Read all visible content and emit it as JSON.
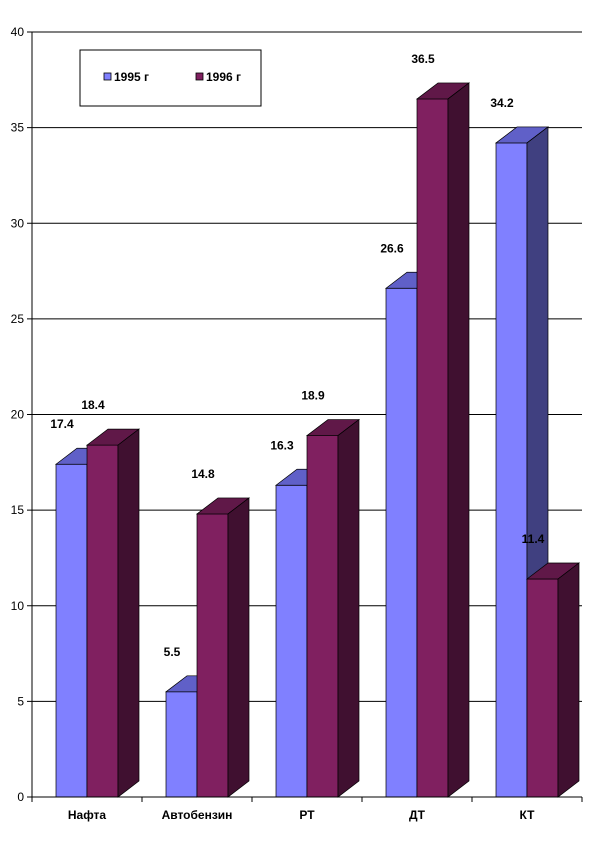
{
  "chart_data": {
    "type": "bar",
    "categories": [
      "Нафта",
      "Автобензин",
      "РТ",
      "ДТ",
      "КТ"
    ],
    "series": [
      {
        "name": "1995 г",
        "values": [
          17.4,
          5.5,
          16.3,
          26.6,
          34.2
        ],
        "color": "#8080ff",
        "top_color": "#6060c8",
        "side_color": "#404080"
      },
      {
        "name": "1996 г",
        "values": [
          18.4,
          14.8,
          18.9,
          36.5,
          11.4
        ],
        "color": "#802060",
        "top_color": "#601848",
        "side_color": "#401030"
      }
    ],
    "data_labels": [
      [
        "17.4",
        "5.5",
        "16.3",
        "26.6",
        "34.2"
      ],
      [
        "18.4",
        "14.8",
        "18.9",
        "36.5",
        "11.4"
      ]
    ],
    "yticks": [
      "0",
      "5",
      "10",
      "15",
      "20",
      "25",
      "30",
      "35",
      "40"
    ],
    "ylim": [
      0,
      40
    ],
    "grid": true,
    "legend_position": "top-left"
  }
}
